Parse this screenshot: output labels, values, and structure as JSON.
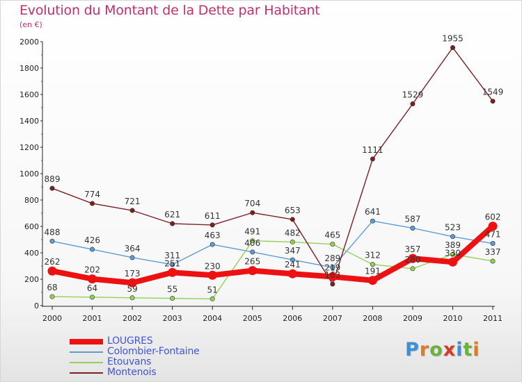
{
  "header": {
    "title": "Evolution du Montant de la Dette par Habitant",
    "subtitle": "(en €)"
  },
  "logo": {
    "text": "Proxiti",
    "letter_colors": [
      "#3d8fd6",
      "#e07c1a",
      "#6ab23c",
      "#d63a2a",
      "#3d8fd6",
      "#6ab23c",
      "#e07c1a"
    ]
  },
  "chart_data": {
    "type": "line",
    "title": "Evolution du Montant de la Dette par Habitant",
    "subtitle": "(en €)",
    "xlabel": "",
    "ylabel": "",
    "categories": [
      "2000",
      "2001",
      "2002",
      "2003",
      "2004",
      "2005",
      "2006",
      "2007",
      "2008",
      "2009",
      "2010",
      "2011"
    ],
    "ylim": [
      0,
      2000
    ],
    "yticks": [
      "0",
      "200",
      "400",
      "600",
      "800",
      "1000",
      "1200",
      "1400",
      "1600",
      "1800",
      "2000"
    ],
    "grid": false,
    "legend_position": "bottom-left",
    "series": [
      {
        "name": "LOUGRES",
        "color": "#ee1111",
        "emphasis": true,
        "values": [
          262,
          202,
          173,
          251,
          230,
          265,
          241,
          219,
          191,
          357,
          330,
          602
        ],
        "labels": [
          "262",
          "202",
          "173",
          "251",
          "230",
          "265",
          "241",
          "219",
          "191",
          "357",
          "330",
          "602"
        ]
      },
      {
        "name": "Colombier-Fontaine",
        "color": "#5e9bd3",
        "emphasis": false,
        "values": [
          488,
          426,
          364,
          311,
          463,
          406,
          347,
          289,
          641,
          587,
          523,
          471
        ],
        "labels": [
          "488",
          "426",
          "364",
          "311",
          "463",
          "406",
          "347",
          "289",
          "641",
          "587",
          "523",
          "471"
        ]
      },
      {
        "name": "Etouvans",
        "color": "#92d05a",
        "emphasis": false,
        "values": [
          68,
          64,
          59,
          55,
          51,
          491,
          482,
          465,
          312,
          280,
          389,
          337
        ],
        "labels": [
          "68",
          "64",
          "59",
          "55",
          "51",
          "491",
          "482",
          "465",
          "312",
          "280",
          "389",
          "337"
        ]
      },
      {
        "name": "Montenois",
        "color": "#7a1f22",
        "emphasis": false,
        "values": [
          889,
          774,
          721,
          621,
          611,
          704,
          653,
          163,
          1111,
          1529,
          1955,
          1549
        ],
        "labels": [
          "889",
          "774",
          "721",
          "621",
          "611",
          "704",
          "653",
          "163",
          "1111",
          "1529",
          "1955",
          "1549"
        ]
      }
    ]
  }
}
